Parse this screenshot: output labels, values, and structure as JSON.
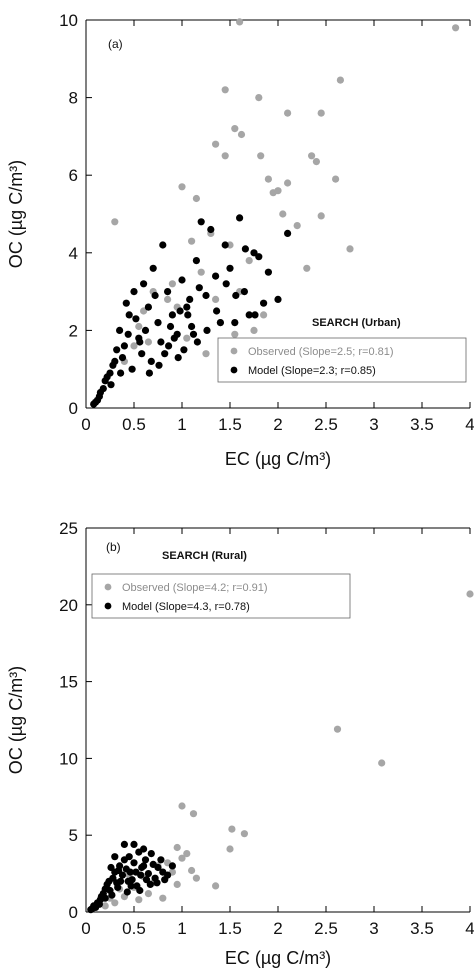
{
  "colors": {
    "observed": "#a6a6a6",
    "model": "#000000",
    "axis": "#000000"
  },
  "chart_data": [
    {
      "type": "scatter",
      "panel_label": "(a)",
      "title": "SEARCH (Urban)",
      "xlabel": "EC (µg C/m³)",
      "ylabel": "OC (µg C/m³)",
      "xlim": [
        0,
        4
      ],
      "ylim": [
        0,
        10
      ],
      "xticks": [
        "0",
        "0.5",
        "1",
        "1.5",
        "2",
        "2.5",
        "3",
        "3.5",
        "4"
      ],
      "yticks": [
        "0",
        "2",
        "4",
        "6",
        "8",
        "10"
      ],
      "grid": false,
      "legend_position": "bottom-right",
      "series": [
        {
          "name": "Observed (Slope=2.5; r=0.81)",
          "color": "#a6a6a6",
          "x": [
            1.6,
            3.85,
            2.65,
            1.45,
            1.8,
            2.1,
            2.45,
            1.55,
            1.62,
            1.35,
            1.45,
            2.35,
            2.4,
            1.82,
            1.9,
            1.95,
            2.0,
            2.1,
            2.6,
            2.45,
            2.75,
            2.3,
            2.05,
            2.2,
            0.3,
            1.0,
            1.15,
            1.3,
            1.5,
            1.7,
            0.9,
            1.2,
            1.1,
            0.6,
            0.7,
            0.85,
            1.4,
            1.55,
            1.75,
            0.5,
            0.4,
            0.55,
            0.95,
            1.05,
            1.25,
            1.6,
            1.85,
            0.75,
            0.65,
            1.35
          ],
          "y": [
            9.95,
            9.8,
            8.45,
            8.2,
            8.0,
            7.6,
            7.6,
            7.2,
            7.05,
            6.8,
            6.5,
            6.5,
            6.35,
            6.5,
            5.9,
            5.55,
            5.6,
            5.8,
            5.9,
            4.95,
            4.1,
            3.6,
            5.0,
            4.7,
            4.8,
            5.7,
            5.4,
            4.5,
            4.2,
            3.8,
            3.2,
            3.5,
            4.3,
            2.5,
            3.0,
            2.8,
            2.2,
            1.9,
            2.0,
            1.6,
            1.2,
            2.1,
            2.6,
            1.8,
            1.4,
            3.0,
            2.4,
            2.2,
            1.7,
            2.8
          ]
        },
        {
          "name": "Model (Slope=2.3; r=0.85)",
          "color": "#000000",
          "x": [
            1.2,
            1.3,
            1.45,
            1.6,
            1.75,
            1.9,
            2.0,
            1.5,
            1.55,
            1.65,
            1.7,
            0.35,
            0.4,
            0.45,
            0.5,
            0.55,
            0.6,
            0.65,
            0.7,
            0.75,
            0.8,
            0.85,
            0.9,
            0.95,
            1.0,
            1.05,
            1.1,
            1.15,
            1.25,
            1.35,
            0.3,
            0.25,
            0.2,
            0.15,
            0.12,
            0.18,
            0.22,
            0.28,
            0.32,
            0.38,
            0.42,
            0.48,
            0.52,
            0.58,
            0.62,
            0.68,
            0.72,
            0.78,
            0.82,
            0.88,
            0.92,
            0.98,
            1.02,
            1.08,
            1.12,
            1.18,
            1.4,
            1.8,
            1.85,
            2.1,
            1.95,
            0.1,
            0.08,
            0.14,
            0.26,
            0.36,
            0.44,
            0.56,
            0.66,
            0.76,
            0.86,
            0.96,
            1.06,
            1.16,
            1.26,
            1.36,
            1.46,
            1.56,
            1.66,
            1.76
          ],
          "y": [
            4.8,
            4.6,
            4.2,
            4.9,
            4.0,
            3.5,
            2.8,
            3.6,
            2.2,
            3.0,
            2.4,
            2.0,
            1.6,
            2.4,
            3.0,
            1.8,
            3.2,
            2.6,
            3.6,
            2.2,
            4.2,
            3.0,
            2.4,
            1.9,
            3.3,
            2.6,
            2.1,
            3.8,
            2.9,
            3.4,
            1.2,
            0.9,
            0.7,
            0.4,
            0.2,
            0.5,
            0.8,
            1.1,
            1.5,
            1.3,
            2.7,
            1.0,
            2.3,
            1.4,
            2.0,
            1.2,
            2.9,
            1.7,
            1.4,
            2.1,
            1.8,
            2.5,
            1.5,
            2.8,
            1.9,
            3.1,
            2.2,
            3.9,
            2.7,
            4.5,
            1.6,
            0.15,
            0.1,
            0.3,
            0.6,
            0.9,
            1.9,
            1.7,
            0.9,
            1.1,
            1.6,
            1.3,
            2.4,
            1.7,
            2.0,
            2.5,
            3.2,
            2.9,
            4.1,
            2.4
          ]
        }
      ]
    },
    {
      "type": "scatter",
      "panel_label": "(b)",
      "title": "SEARCH (Rural)",
      "xlabel": "EC (µg C/m³)",
      "ylabel": "OC (µg C/m³)",
      "xlim": [
        0,
        4
      ],
      "ylim": [
        0,
        25
      ],
      "xticks": [
        "0",
        "0.5",
        "1",
        "1.5",
        "2",
        "2.5",
        "3",
        "3.5",
        "4"
      ],
      "yticks": [
        "0",
        "5",
        "10",
        "15",
        "20",
        "25"
      ],
      "grid": false,
      "legend_position": "top-left",
      "series": [
        {
          "name": "Observed (Slope=4.2; r=0.91)",
          "color": "#a6a6a6",
          "x": [
            4.0,
            2.62,
            3.08,
            1.0,
            1.12,
            1.52,
            1.65,
            1.5,
            0.95,
            1.05,
            1.1,
            1.35,
            0.85,
            0.9,
            0.75,
            0.7,
            0.6,
            0.65,
            0.8,
            0.95,
            1.0,
            1.15,
            0.5,
            0.55,
            0.45,
            0.4,
            0.35,
            0.3,
            0.25,
            0.2
          ],
          "y": [
            20.7,
            11.9,
            9.7,
            6.9,
            6.4,
            5.4,
            5.1,
            4.1,
            4.2,
            3.8,
            2.7,
            1.7,
            3.2,
            2.6,
            3.0,
            1.9,
            2.3,
            1.2,
            0.9,
            1.8,
            3.5,
            2.2,
            1.6,
            0.8,
            2.4,
            1.0,
            1.5,
            0.6,
            0.9,
            0.4
          ]
        },
        {
          "name": "Model (Slope=4.3, r=0.78)",
          "color": "#000000",
          "x": [
            0.1,
            0.12,
            0.15,
            0.18,
            0.2,
            0.22,
            0.25,
            0.28,
            0.3,
            0.32,
            0.35,
            0.38,
            0.4,
            0.42,
            0.45,
            0.48,
            0.5,
            0.52,
            0.55,
            0.58,
            0.6,
            0.62,
            0.65,
            0.68,
            0.7,
            0.72,
            0.75,
            0.78,
            0.8,
            0.85,
            0.9,
            0.2,
            0.24,
            0.27,
            0.33,
            0.36,
            0.44,
            0.47,
            0.53,
            0.57,
            0.63,
            0.67,
            0.74,
            0.82,
            0.3,
            0.4,
            0.5,
            0.6,
            0.26,
            0.34,
            0.43,
            0.46,
            0.56,
            0.14,
            0.16,
            0.08,
            0.06,
            0.05
          ],
          "y": [
            0.3,
            0.6,
            0.8,
            1.2,
            1.5,
            1.8,
            1.4,
            2.2,
            2.6,
            1.9,
            3.0,
            2.4,
            3.4,
            2.8,
            3.6,
            2.1,
            3.2,
            2.6,
            3.9,
            2.9,
            4.1,
            3.4,
            2.5,
            3.8,
            3.1,
            2.2,
            2.9,
            3.4,
            2.6,
            2.4,
            3.0,
            0.9,
            2.0,
            1.1,
            1.6,
            2.0,
            2.0,
            1.7,
            1.7,
            2.4,
            2.1,
            1.8,
            1.9,
            2.1,
            3.6,
            4.4,
            4.4,
            3.0,
            2.9,
            2.7,
            1.3,
            2.6,
            1.4,
            0.5,
            1.0,
            0.4,
            0.2,
            0.15
          ]
        }
      ]
    }
  ]
}
